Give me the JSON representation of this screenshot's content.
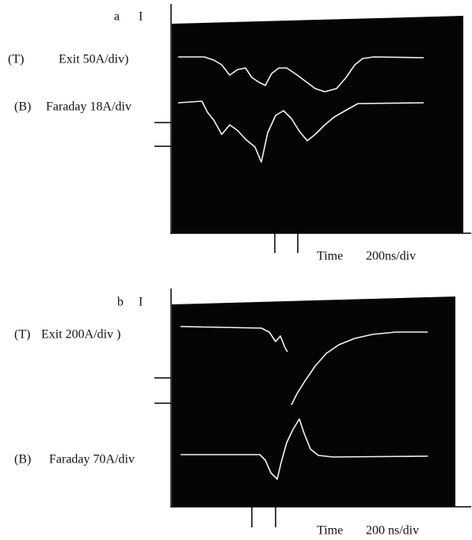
{
  "panels": [
    {
      "label": "a",
      "axis": "I",
      "top_tag": "(T)",
      "top_trace": "Exit 50A/div)",
      "bottom_tag": "(B)",
      "bottom_trace": "Faraday 18A/div",
      "time_label": "Time",
      "time_scale": "200ns/div"
    },
    {
      "label": "b",
      "axis": "I",
      "top_tag": "(T)",
      "top_trace": "Exit 200A/div )",
      "bottom_tag": "(B)",
      "bottom_trace": "Faraday 70A/div",
      "time_label": "Time",
      "time_scale": "200 ns/div"
    }
  ]
}
